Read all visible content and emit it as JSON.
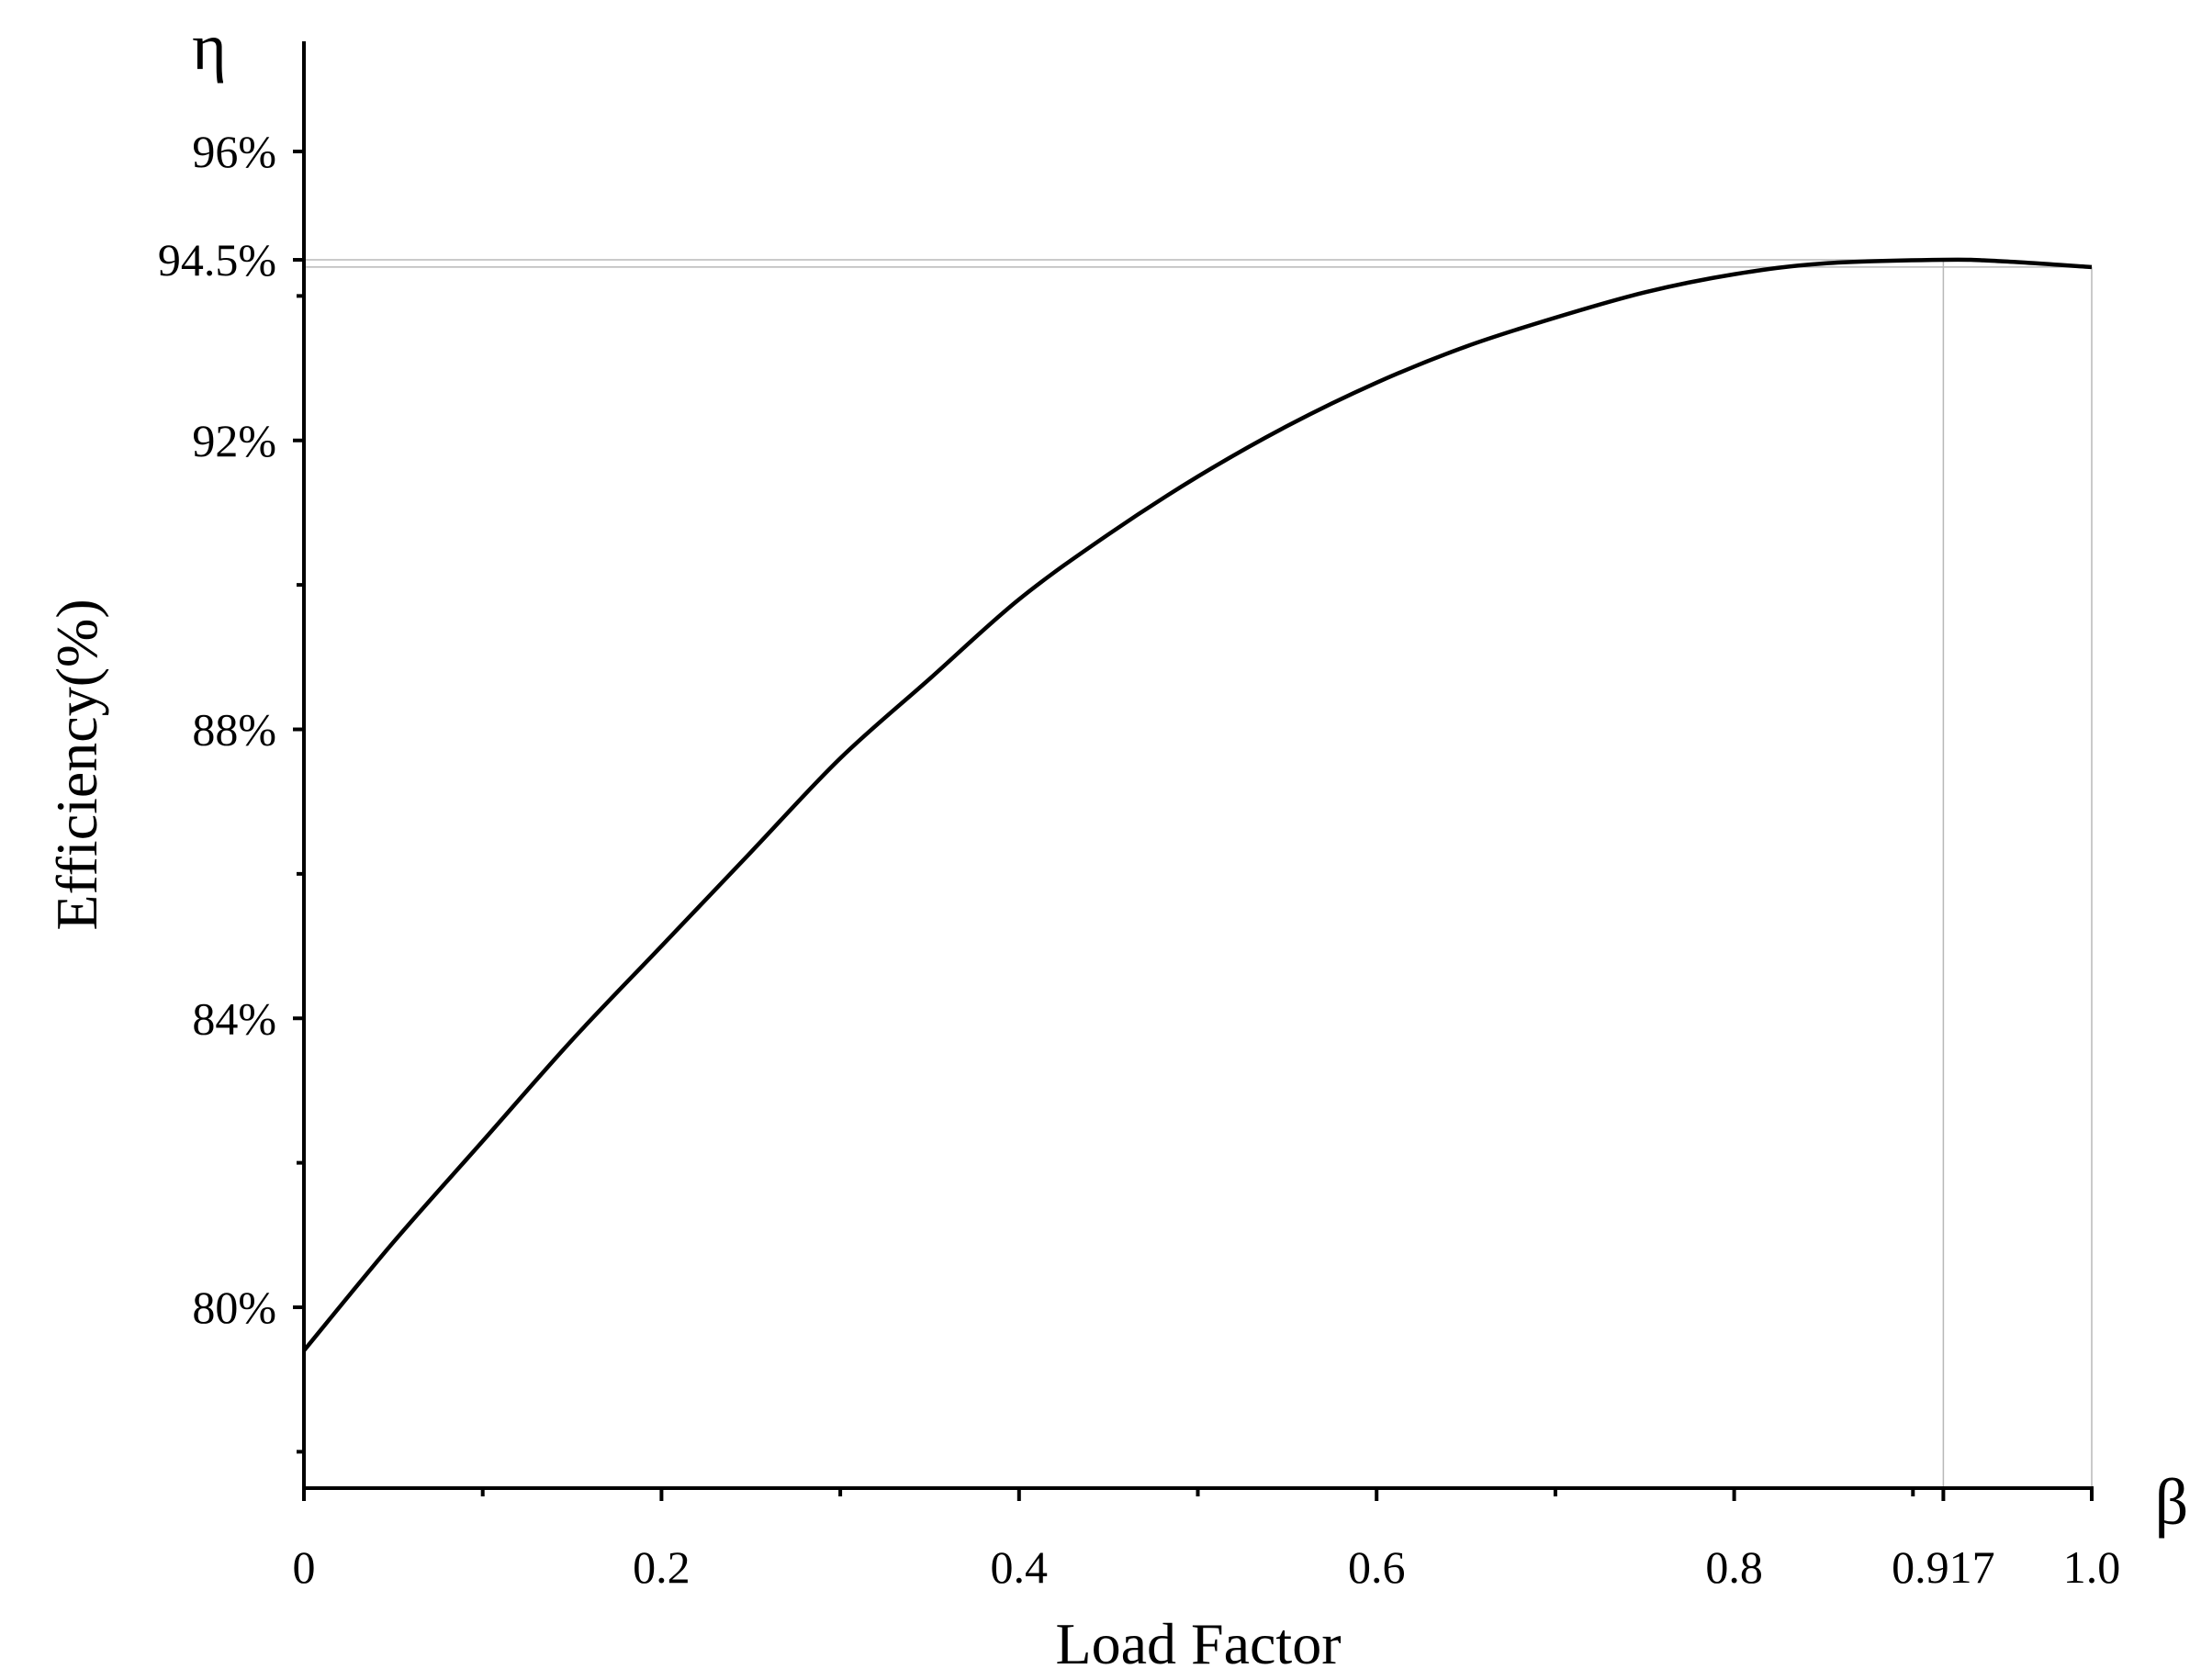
{
  "chart_data": {
    "type": "line",
    "xlabel": "Load Factor",
    "ylabel": "Efficiency(%)",
    "x_symbol": "β",
    "y_symbol": "η",
    "xlim": [
      0,
      1.0
    ],
    "ylim": [
      77.5,
      97.5
    ],
    "x_ticks": [
      {
        "value": 0,
        "label": "0"
      },
      {
        "value": 0.2,
        "label": "0.2"
      },
      {
        "value": 0.4,
        "label": "0.4"
      },
      {
        "value": 0.6,
        "label": "0.6"
      },
      {
        "value": 0.8,
        "label": "0.8"
      },
      {
        "value": 0.917,
        "label": "0.917"
      },
      {
        "value": 1.0,
        "label": "1.0"
      }
    ],
    "x_minor_ticks": [
      0.1,
      0.3,
      0.5,
      0.7,
      0.9
    ],
    "y_ticks": [
      {
        "value": 80,
        "label": "80%"
      },
      {
        "value": 84,
        "label": "84%"
      },
      {
        "value": 88,
        "label": "88%"
      },
      {
        "value": 92,
        "label": "92%"
      },
      {
        "value": 94.5,
        "label": "94.5%"
      },
      {
        "value": 96,
        "label": "96%"
      }
    ],
    "y_minor_ticks": [
      78,
      82,
      86,
      90,
      94
    ],
    "reference_lines": {
      "x": [
        0.917,
        1.0
      ],
      "y": [
        94.5,
        94.4
      ]
    },
    "series": [
      {
        "values": [
          {
            "x": 0.0,
            "y": 79.4
          },
          {
            "x": 0.05,
            "y": 80.9
          },
          {
            "x": 0.1,
            "y": 82.3
          },
          {
            "x": 0.15,
            "y": 83.7
          },
          {
            "x": 0.2,
            "y": 85.0
          },
          {
            "x": 0.25,
            "y": 86.3
          },
          {
            "x": 0.3,
            "y": 87.6
          },
          {
            "x": 0.35,
            "y": 88.7
          },
          {
            "x": 0.4,
            "y": 89.8
          },
          {
            "x": 0.45,
            "y": 90.7
          },
          {
            "x": 0.5,
            "y": 91.5
          },
          {
            "x": 0.55,
            "y": 92.2
          },
          {
            "x": 0.6,
            "y": 92.8
          },
          {
            "x": 0.65,
            "y": 93.3
          },
          {
            "x": 0.7,
            "y": 93.7
          },
          {
            "x": 0.75,
            "y": 94.05
          },
          {
            "x": 0.8,
            "y": 94.3
          },
          {
            "x": 0.85,
            "y": 94.45
          },
          {
            "x": 0.917,
            "y": 94.5
          },
          {
            "x": 0.95,
            "y": 94.48
          },
          {
            "x": 1.0,
            "y": 94.4
          }
        ],
        "color": "#000000"
      }
    ],
    "grid": false,
    "legend": "none"
  }
}
